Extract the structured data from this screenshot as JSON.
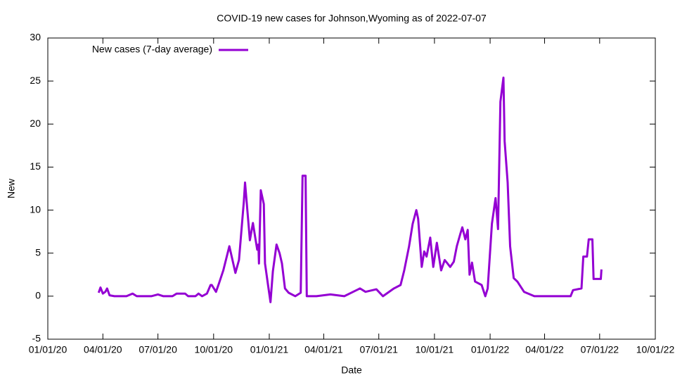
{
  "chart_data": {
    "type": "line",
    "title": "COVID-19 new cases for Johnson,Wyoming as of 2022-07-07",
    "xlabel": "Date",
    "ylabel": "New",
    "legend_position": "top-left",
    "xlim": [
      "2020-01-01",
      "2022-10-01"
    ],
    "xticks": [
      {
        "value": "2020-01-01",
        "label": "01/01/20"
      },
      {
        "value": "2020-04-01",
        "label": "04/01/20"
      },
      {
        "value": "2020-07-01",
        "label": "07/01/20"
      },
      {
        "value": "2020-10-01",
        "label": "10/01/20"
      },
      {
        "value": "2021-01-01",
        "label": "01/01/21"
      },
      {
        "value": "2021-04-01",
        "label": "04/01/21"
      },
      {
        "value": "2021-07-01",
        "label": "07/01/21"
      },
      {
        "value": "2021-10-01",
        "label": "10/01/21"
      },
      {
        "value": "2022-01-01",
        "label": "01/01/22"
      },
      {
        "value": "2022-04-01",
        "label": "04/01/22"
      },
      {
        "value": "2022-07-01",
        "label": "07/01/22"
      },
      {
        "value": "2022-10-01",
        "label": "10/01/22"
      }
    ],
    "ylim": [
      -5,
      30
    ],
    "yticks": [
      -5,
      0,
      5,
      10,
      15,
      20,
      25,
      30
    ],
    "x": [
      "2020-03-25",
      "2020-03-28",
      "2020-04-01",
      "2020-04-05",
      "2020-04-08",
      "2020-04-12",
      "2020-04-20",
      "2020-05-10",
      "2020-05-20",
      "2020-05-27",
      "2020-06-20",
      "2020-07-01",
      "2020-07-10",
      "2020-07-25",
      "2020-08-01",
      "2020-08-15",
      "2020-08-20",
      "2020-09-01",
      "2020-09-06",
      "2020-09-12",
      "2020-09-20",
      "2020-09-26",
      "2020-09-28",
      "2020-10-05",
      "2020-10-10",
      "2020-10-17",
      "2020-10-27",
      "2020-11-06",
      "2020-11-12",
      "2020-11-20",
      "2020-11-22",
      "2020-11-27",
      "2020-11-30",
      "2020-12-05",
      "2020-12-12",
      "2020-12-14",
      "2020-12-15",
      "2020-12-18",
      "2020-12-23",
      "2020-12-25",
      "2020-12-30",
      "2021-01-03",
      "2021-01-07",
      "2021-01-13",
      "2021-01-18",
      "2021-01-22",
      "2021-01-27",
      "2021-02-02",
      "2021-02-13",
      "2021-02-22",
      "2021-02-25",
      "2021-03-02",
      "2021-03-04",
      "2021-03-20",
      "2021-04-12",
      "2021-05-05",
      "2021-05-31",
      "2021-06-09",
      "2021-06-27",
      "2021-07-08",
      "2021-07-26",
      "2021-08-06",
      "2021-08-12",
      "2021-08-20",
      "2021-08-26",
      "2021-09-01",
      "2021-09-04",
      "2021-09-10",
      "2021-09-14",
      "2021-09-18",
      "2021-09-24",
      "2021-09-29",
      "2021-10-05",
      "2021-10-12",
      "2021-10-18",
      "2021-10-27",
      "2021-11-02",
      "2021-11-07",
      "2021-11-13",
      "2021-11-16",
      "2021-11-21",
      "2021-11-25",
      "2021-11-28",
      "2021-12-02",
      "2021-12-07",
      "2021-12-18",
      "2021-12-24",
      "2021-12-28",
      "2022-01-04",
      "2022-01-10",
      "2022-01-14",
      "2022-01-18",
      "2022-01-23",
      "2022-01-25",
      "2022-01-30",
      "2022-02-03",
      "2022-02-09",
      "2022-02-15",
      "2022-02-26",
      "2022-03-15",
      "2022-04-19",
      "2022-05-14",
      "2022-05-18",
      "2022-06-01",
      "2022-06-04",
      "2022-06-10",
      "2022-06-13",
      "2022-06-19",
      "2022-06-21",
      "2022-07-03",
      "2022-07-04"
    ],
    "series": [
      {
        "name": "New cases (7-day average)",
        "color": "#9400d3",
        "values": [
          0.4,
          1.0,
          0.3,
          0.5,
          0.9,
          0.1,
          0,
          0,
          0.3,
          0,
          0,
          0.2,
          0,
          0,
          0.3,
          0.3,
          0,
          0,
          0.3,
          0,
          0.3,
          1.3,
          1.3,
          0.5,
          1.5,
          3.0,
          5.8,
          2.7,
          4.2,
          11,
          13.2,
          9,
          6.5,
          8.5,
          5.4,
          6,
          3.8,
          12.3,
          10.7,
          3.8,
          1.3,
          -0.7,
          2.9,
          6,
          5,
          3.8,
          0.9,
          0.4,
          0,
          0.4,
          14,
          14,
          0,
          0,
          0.2,
          0,
          0.9,
          0.5,
          0.8,
          0,
          0.9,
          1.3,
          3,
          5.8,
          8.4,
          10,
          9,
          3.4,
          5.2,
          4.6,
          6.8,
          3.4,
          6.2,
          3,
          4.2,
          3.4,
          4,
          5.8,
          7.3,
          8,
          6.6,
          7.7,
          2.5,
          3.9,
          1.7,
          1.3,
          0,
          0.9,
          8.4,
          11.4,
          7.8,
          22.6,
          25.4,
          18,
          13.2,
          5.8,
          2.1,
          1.7,
          0.5,
          0,
          0,
          0,
          0.7,
          0.9,
          4.6,
          4.6,
          6.6,
          6.6,
          2,
          2,
          3.1
        ]
      }
    ]
  }
}
